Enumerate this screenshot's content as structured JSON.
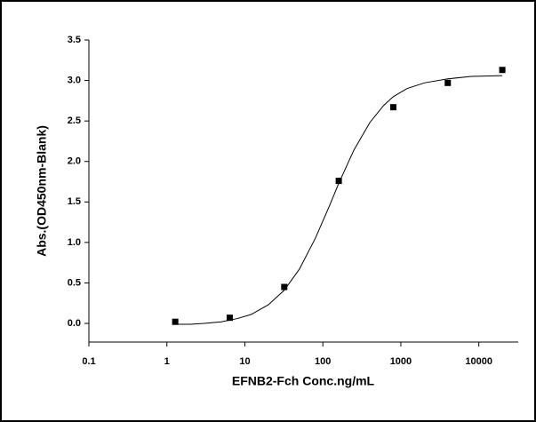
{
  "chart_data": {
    "type": "scatter",
    "x_label": "EFNB2-Fch Conc.ng/mL",
    "y_label": "Abs.(OD450nm-Blank)",
    "xscale": "log",
    "xlim": [
      0.1,
      32000
    ],
    "ylim": [
      -0.23,
      3.5
    ],
    "xticks": [
      0.1,
      1,
      10,
      100,
      1000,
      10000
    ],
    "yticks": [
      {
        "value": 0,
        "label": "0.0"
      },
      0.5,
      {
        "value": 1,
        "label": "1.0"
      },
      1.5,
      {
        "value": 2,
        "label": "2.0"
      },
      2.5,
      {
        "value": 3,
        "label": "3.0"
      },
      3.5
    ],
    "series": [
      {
        "type": "scatter",
        "color": "#000000",
        "marker": "square",
        "x": [
          1.28,
          6.4,
          32,
          160,
          800,
          4000,
          20000
        ],
        "values": [
          0.02,
          0.07,
          0.45,
          1.76,
          2.67,
          2.97,
          3.13
        ]
      },
      {
        "type": "line",
        "color": "#000000",
        "x": [
          1.28,
          2,
          3,
          5,
          8,
          12,
          20,
          32,
          50,
          80,
          120,
          160,
          250,
          400,
          600,
          800,
          1200,
          2000,
          4000,
          8000,
          20000
        ],
        "values": [
          -0.01,
          -0.01,
          0.0,
          0.02,
          0.06,
          0.11,
          0.23,
          0.41,
          0.67,
          1.05,
          1.44,
          1.73,
          2.14,
          2.48,
          2.69,
          2.8,
          2.9,
          2.97,
          3.02,
          3.05,
          3.06
        ]
      }
    ]
  }
}
